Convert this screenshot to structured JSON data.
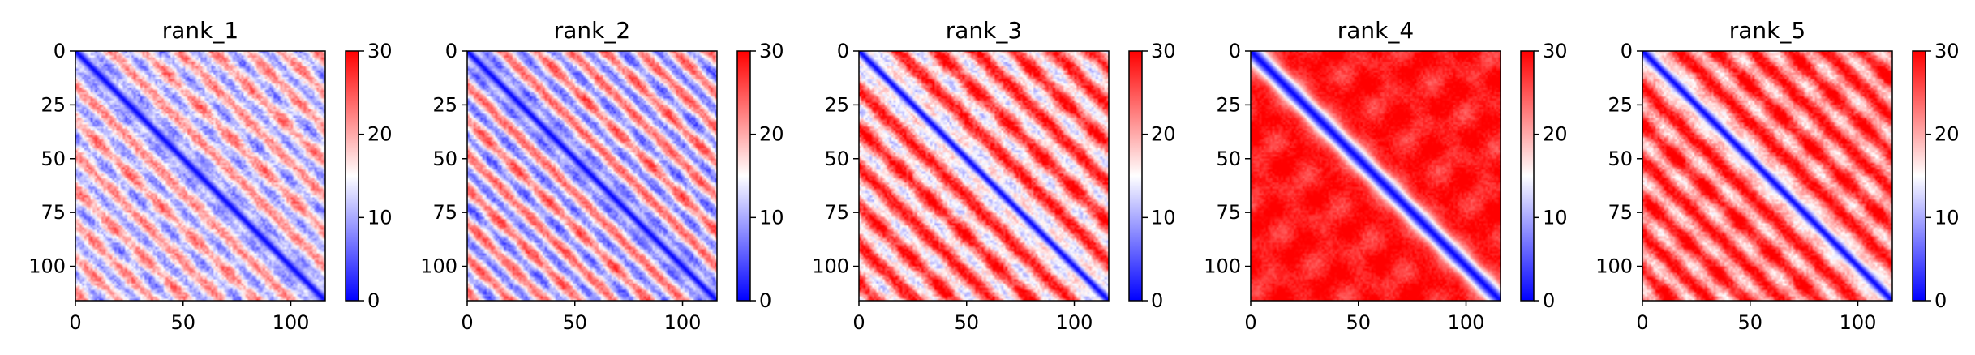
{
  "figure": {
    "layout": "1x5 grid of contact-map heatmaps with colorbars"
  },
  "colormap": {
    "name": "bwr",
    "low": "#0000ff",
    "mid": "#ffffff",
    "high": "#ff0000"
  },
  "chart_data": [
    {
      "type": "heatmap",
      "title": "rank_1",
      "size": 116,
      "x_ticks": [
        "0",
        "50",
        "100"
      ],
      "y_ticks": [
        "0",
        "25",
        "50",
        "75",
        "100"
      ],
      "xlim": [
        0,
        116
      ],
      "ylim": [
        116,
        0
      ],
      "colorbar": {
        "min": 0,
        "max": 30,
        "ticks": [
          "0",
          "10",
          "20",
          "30"
        ]
      },
      "pattern": {
        "diag_width": 3.0,
        "off_diag_mean": 15.5,
        "periodic_amp": 6.5,
        "period": 16,
        "texture": 3.0
      }
    },
    {
      "type": "heatmap",
      "title": "rank_2",
      "size": 116,
      "x_ticks": [
        "0",
        "50",
        "100"
      ],
      "y_ticks": [
        "0",
        "25",
        "50",
        "75",
        "100"
      ],
      "xlim": [
        0,
        116
      ],
      "ylim": [
        116,
        0
      ],
      "colorbar": {
        "min": 0,
        "max": 30,
        "ticks": [
          "0",
          "10",
          "20",
          "30"
        ]
      },
      "pattern": {
        "diag_width": 3.0,
        "off_diag_mean": 15.5,
        "periodic_amp": 8.5,
        "period": 16,
        "texture": 2.5
      }
    },
    {
      "type": "heatmap",
      "title": "rank_3",
      "size": 116,
      "x_ticks": [
        "0",
        "50",
        "100"
      ],
      "y_ticks": [
        "0",
        "25",
        "50",
        "75",
        "100"
      ],
      "xlim": [
        0,
        116
      ],
      "ylim": [
        116,
        0
      ],
      "colorbar": {
        "min": 0,
        "max": 30,
        "ticks": [
          "0",
          "10",
          "20",
          "30"
        ]
      },
      "pattern": {
        "diag_width": 3.0,
        "off_diag_mean": 21.5,
        "periodic_amp": 7.5,
        "period": 18,
        "texture": 3.0
      }
    },
    {
      "type": "heatmap",
      "title": "rank_4",
      "size": 116,
      "x_ticks": [
        "0",
        "50",
        "100"
      ],
      "y_ticks": [
        "0",
        "25",
        "50",
        "75",
        "100"
      ],
      "xlim": [
        0,
        116
      ],
      "ylim": [
        116,
        0
      ],
      "colorbar": {
        "min": 0,
        "max": 30,
        "ticks": [
          "0",
          "10",
          "20",
          "30"
        ]
      },
      "pattern": {
        "diag_width": 5.0,
        "off_diag_mean": 28.5,
        "periodic_amp": 0.8,
        "period": 20,
        "texture": 1.5
      }
    },
    {
      "type": "heatmap",
      "title": "rank_5",
      "size": 116,
      "x_ticks": [
        "0",
        "50",
        "100"
      ],
      "y_ticks": [
        "0",
        "25",
        "50",
        "75",
        "100"
      ],
      "xlim": [
        0,
        116
      ],
      "ylim": [
        116,
        0
      ],
      "colorbar": {
        "min": 0,
        "max": 30,
        "ticks": [
          "0",
          "10",
          "20",
          "30"
        ]
      },
      "pattern": {
        "diag_width": 3.5,
        "off_diag_mean": 24.0,
        "periodic_amp": 6.0,
        "period": 17,
        "texture": 2.5
      }
    }
  ]
}
